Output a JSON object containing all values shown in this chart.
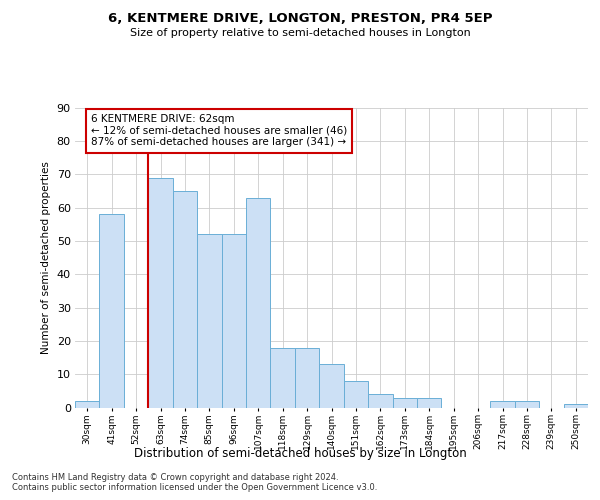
{
  "title": "6, KENTMERE DRIVE, LONGTON, PRESTON, PR4 5EP",
  "subtitle": "Size of property relative to semi-detached houses in Longton",
  "xlabel": "Distribution of semi-detached houses by size in Longton",
  "ylabel": "Number of semi-detached properties",
  "categories": [
    "30sqm",
    "41sqm",
    "52sqm",
    "63sqm",
    "74sqm",
    "85sqm",
    "96sqm",
    "107sqm",
    "118sqm",
    "129sqm",
    "140sqm",
    "151sqm",
    "162sqm",
    "173sqm",
    "184sqm",
    "195sqm",
    "206sqm",
    "217sqm",
    "228sqm",
    "239sqm",
    "250sqm"
  ],
  "values": [
    2,
    58,
    0,
    69,
    65,
    52,
    52,
    63,
    18,
    18,
    13,
    8,
    4,
    3,
    3,
    0,
    0,
    2,
    2,
    0,
    1
  ],
  "bar_color": "#cce0f5",
  "bar_edge_color": "#6aaed6",
  "vline_color": "#cc0000",
  "annotation_text": "6 KENTMERE DRIVE: 62sqm\n← 12% of semi-detached houses are smaller (46)\n87% of semi-detached houses are larger (341) →",
  "annotation_box_color": "#ffffff",
  "annotation_box_edge": "#cc0000",
  "ylim": [
    0,
    90
  ],
  "yticks": [
    0,
    10,
    20,
    30,
    40,
    50,
    60,
    70,
    80,
    90
  ],
  "footer": "Contains HM Land Registry data © Crown copyright and database right 2024.\nContains public sector information licensed under the Open Government Licence v3.0.",
  "bg_color": "#ffffff",
  "grid_color": "#cccccc"
}
